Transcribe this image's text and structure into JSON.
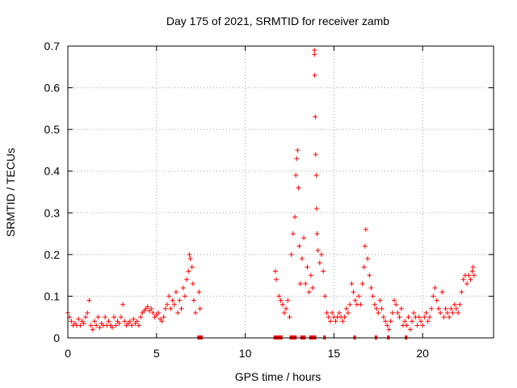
{
  "chart_data": {
    "type": "scatter",
    "title": "Day 175 of 2021, SRMTID for receiver zamb",
    "xlabel": "GPS time / hours",
    "ylabel": "SRMTID / TECUs",
    "xlim": [
      0,
      24
    ],
    "ylim": [
      0,
      0.7
    ],
    "xticks": [
      0,
      5,
      10,
      15,
      20
    ],
    "yticks": [
      0,
      0.1,
      0.2,
      0.3,
      0.4,
      0.5,
      0.6,
      0.7
    ],
    "grid": true,
    "marker": "plus",
    "color": "#ff0000",
    "baseline_segments": [
      [
        7.3,
        7.6
      ],
      [
        11.6,
        12.1
      ],
      [
        12.5,
        12.9
      ],
      [
        13.1,
        13.4
      ],
      [
        13.6,
        14.0
      ],
      [
        14.4,
        14.5
      ],
      [
        16.1,
        16.2
      ],
      [
        17.3,
        17.4
      ],
      [
        18.0,
        18.1
      ],
      [
        19.0,
        19.1
      ]
    ],
    "series": [
      {
        "name": "SRMTID",
        "points": [
          [
            0.0,
            0.06
          ],
          [
            0.1,
            0.05
          ],
          [
            0.2,
            0.04
          ],
          [
            0.3,
            0.03
          ],
          [
            0.4,
            0.035
          ],
          [
            0.5,
            0.03
          ],
          [
            0.6,
            0.045
          ],
          [
            0.7,
            0.03
          ],
          [
            0.8,
            0.04
          ],
          [
            0.9,
            0.035
          ],
          [
            1.0,
            0.05
          ],
          [
            1.1,
            0.06
          ],
          [
            1.2,
            0.09
          ],
          [
            1.3,
            0.03
          ],
          [
            1.4,
            0.02
          ],
          [
            1.5,
            0.04
          ],
          [
            1.6,
            0.03
          ],
          [
            1.7,
            0.05
          ],
          [
            1.8,
            0.025
          ],
          [
            1.9,
            0.035
          ],
          [
            2.0,
            0.03
          ],
          [
            2.1,
            0.05
          ],
          [
            2.2,
            0.03
          ],
          [
            2.3,
            0.04
          ],
          [
            2.4,
            0.03
          ],
          [
            2.5,
            0.025
          ],
          [
            2.6,
            0.05
          ],
          [
            2.7,
            0.03
          ],
          [
            2.8,
            0.04
          ],
          [
            2.9,
            0.035
          ],
          [
            3.0,
            0.05
          ],
          [
            3.1,
            0.08
          ],
          [
            3.2,
            0.04
          ],
          [
            3.3,
            0.03
          ],
          [
            3.4,
            0.035
          ],
          [
            3.5,
            0.04
          ],
          [
            3.6,
            0.03
          ],
          [
            3.7,
            0.045
          ],
          [
            3.8,
            0.035
          ],
          [
            3.9,
            0.04
          ],
          [
            4.0,
            0.03
          ],
          [
            4.1,
            0.05
          ],
          [
            4.2,
            0.06
          ],
          [
            4.3,
            0.065
          ],
          [
            4.4,
            0.07
          ],
          [
            4.5,
            0.075
          ],
          [
            4.6,
            0.065
          ],
          [
            4.7,
            0.07
          ],
          [
            4.8,
            0.06
          ],
          [
            4.9,
            0.05
          ],
          [
            5.0,
            0.055
          ],
          [
            5.1,
            0.06
          ],
          [
            5.2,
            0.045
          ],
          [
            5.3,
            0.04
          ],
          [
            5.4,
            0.05
          ],
          [
            5.5,
            0.07
          ],
          [
            5.6,
            0.08
          ],
          [
            5.7,
            0.1
          ],
          [
            5.8,
            0.07
          ],
          [
            5.9,
            0.09
          ],
          [
            6.0,
            0.08
          ],
          [
            6.1,
            0.11
          ],
          [
            6.2,
            0.06
          ],
          [
            6.3,
            0.09
          ],
          [
            6.4,
            0.07
          ],
          [
            6.5,
            0.12
          ],
          [
            6.6,
            0.1
          ],
          [
            6.7,
            0.14
          ],
          [
            6.8,
            0.16
          ],
          [
            6.85,
            0.2
          ],
          [
            6.9,
            0.19
          ],
          [
            7.0,
            0.17
          ],
          [
            7.05,
            0.13
          ],
          [
            7.1,
            0.09
          ],
          [
            7.2,
            0.06
          ],
          [
            7.4,
            0.11
          ],
          [
            7.45,
            0.07
          ],
          [
            11.7,
            0.16
          ],
          [
            11.75,
            0.14
          ],
          [
            11.9,
            0.1
          ],
          [
            12.0,
            0.09
          ],
          [
            12.1,
            0.08
          ],
          [
            12.2,
            0.06
          ],
          [
            12.3,
            0.07
          ],
          [
            12.4,
            0.09
          ],
          [
            12.5,
            0.05
          ],
          [
            12.6,
            0.2
          ],
          [
            12.7,
            0.25
          ],
          [
            12.8,
            0.29
          ],
          [
            12.85,
            0.39
          ],
          [
            12.9,
            0.43
          ],
          [
            12.95,
            0.45
          ],
          [
            13.0,
            0.36
          ],
          [
            13.05,
            0.22
          ],
          [
            13.1,
            0.13
          ],
          [
            13.2,
            0.19
          ],
          [
            13.3,
            0.24
          ],
          [
            13.4,
            0.13
          ],
          [
            13.5,
            0.17
          ],
          [
            13.6,
            0.11
          ],
          [
            13.7,
            0.15
          ],
          [
            13.8,
            0.12
          ],
          [
            13.9,
            0.69
          ],
          [
            13.9,
            0.68
          ],
          [
            13.92,
            0.63
          ],
          [
            13.95,
            0.53
          ],
          [
            13.97,
            0.44
          ],
          [
            14.0,
            0.39
          ],
          [
            14.02,
            0.31
          ],
          [
            14.05,
            0.25
          ],
          [
            14.1,
            0.21
          ],
          [
            14.2,
            0.18
          ],
          [
            14.3,
            0.2
          ],
          [
            14.4,
            0.16
          ],
          [
            14.5,
            0.1
          ],
          [
            14.6,
            0.06
          ],
          [
            14.7,
            0.05
          ],
          [
            14.8,
            0.04
          ],
          [
            14.9,
            0.06
          ],
          [
            15.0,
            0.05
          ],
          [
            15.1,
            0.04
          ],
          [
            15.2,
            0.05
          ],
          [
            15.3,
            0.06
          ],
          [
            15.4,
            0.05
          ],
          [
            15.5,
            0.04
          ],
          [
            15.6,
            0.05
          ],
          [
            15.7,
            0.07
          ],
          [
            15.8,
            0.06
          ],
          [
            15.9,
            0.08
          ],
          [
            16.0,
            0.13
          ],
          [
            16.1,
            0.11
          ],
          [
            16.2,
            0.09
          ],
          [
            16.3,
            0.08
          ],
          [
            16.4,
            0.1
          ],
          [
            16.5,
            0.08
          ],
          [
            16.6,
            0.13
          ],
          [
            16.7,
            0.17
          ],
          [
            16.75,
            0.22
          ],
          [
            16.8,
            0.26
          ],
          [
            16.9,
            0.19
          ],
          [
            17.0,
            0.15
          ],
          [
            17.1,
            0.12
          ],
          [
            17.2,
            0.1
          ],
          [
            17.3,
            0.08
          ],
          [
            17.4,
            0.07
          ],
          [
            17.5,
            0.06
          ],
          [
            17.6,
            0.09
          ],
          [
            17.7,
            0.07
          ],
          [
            17.8,
            0.05
          ],
          [
            17.9,
            0.04
          ],
          [
            18.0,
            0.03
          ],
          [
            18.1,
            0.02
          ],
          [
            18.2,
            0.04
          ],
          [
            18.3,
            0.06
          ],
          [
            18.4,
            0.09
          ],
          [
            18.5,
            0.08
          ],
          [
            18.6,
            0.06
          ],
          [
            18.7,
            0.05
          ],
          [
            18.8,
            0.07
          ],
          [
            18.9,
            0.03
          ],
          [
            19.0,
            0.04
          ],
          [
            19.1,
            0.03
          ],
          [
            19.2,
            0.05
          ],
          [
            19.3,
            0.02
          ],
          [
            19.4,
            0.04
          ],
          [
            19.5,
            0.06
          ],
          [
            19.6,
            0.05
          ],
          [
            19.7,
            0.03
          ],
          [
            19.8,
            0.05
          ],
          [
            19.9,
            0.04
          ],
          [
            20.0,
            0.03
          ],
          [
            20.1,
            0.05
          ],
          [
            20.2,
            0.06
          ],
          [
            20.3,
            0.04
          ],
          [
            20.4,
            0.05
          ],
          [
            20.5,
            0.07
          ],
          [
            20.6,
            0.1
          ],
          [
            20.7,
            0.12
          ],
          [
            20.8,
            0.09
          ],
          [
            20.9,
            0.07
          ],
          [
            21.0,
            0.06
          ],
          [
            21.1,
            0.11
          ],
          [
            21.2,
            0.05
          ],
          [
            21.3,
            0.07
          ],
          [
            21.4,
            0.06
          ],
          [
            21.5,
            0.05
          ],
          [
            21.6,
            0.07
          ],
          [
            21.7,
            0.06
          ],
          [
            21.8,
            0.08
          ],
          [
            21.9,
            0.07
          ],
          [
            22.0,
            0.06
          ],
          [
            22.1,
            0.08
          ],
          [
            22.2,
            0.11
          ],
          [
            22.3,
            0.14
          ],
          [
            22.4,
            0.15
          ],
          [
            22.5,
            0.13
          ],
          [
            22.6,
            0.15
          ],
          [
            22.7,
            0.14
          ],
          [
            22.8,
            0.16
          ],
          [
            22.85,
            0.17
          ],
          [
            22.9,
            0.15
          ]
        ]
      }
    ]
  }
}
